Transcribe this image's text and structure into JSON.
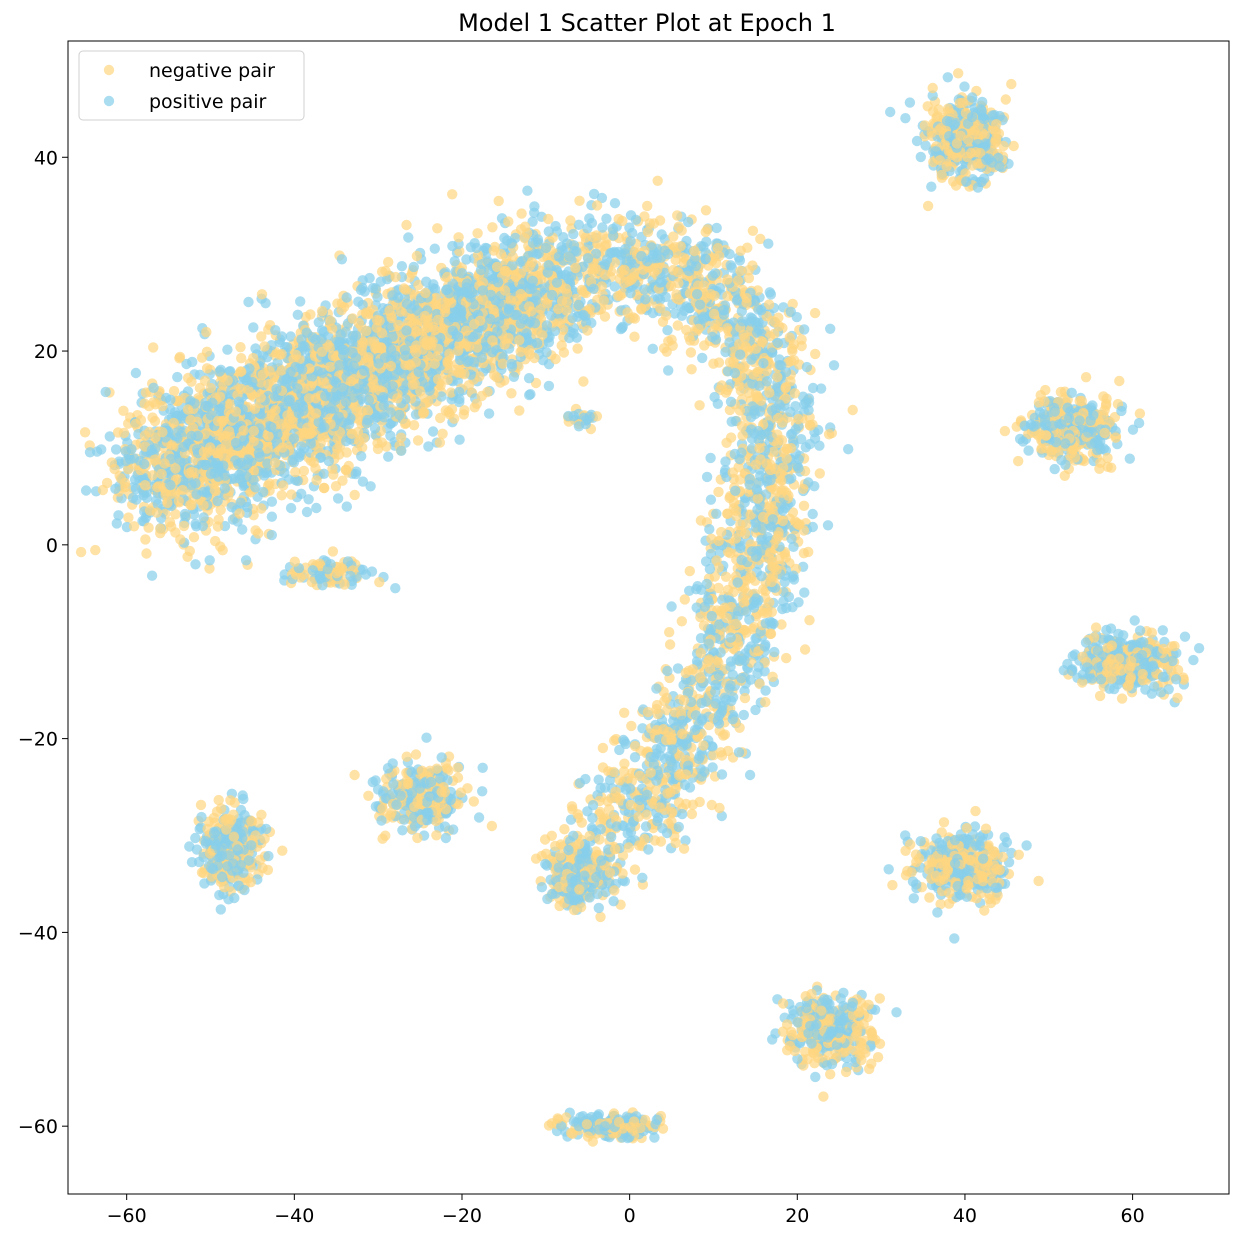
{
  "chart_data": {
    "type": "scatter",
    "title": "Model 1 Scatter Plot at Epoch 1",
    "xlabel": "",
    "ylabel": "",
    "xlim": [
      -67,
      71.5
    ],
    "ylim": [
      -67,
      52
    ],
    "x_ticks": [
      -60,
      -40,
      -20,
      0,
      20,
      40,
      60
    ],
    "y_ticks": [
      -60,
      -40,
      -20,
      0,
      20,
      40
    ],
    "x_tick_labels": [
      "−60",
      "−40",
      "−20",
      "0",
      "20",
      "40",
      "60"
    ],
    "y_tick_labels": [
      "−60",
      "−40",
      "−20",
      "0",
      "20",
      "40"
    ],
    "grid": false,
    "legend_position": "upper-left",
    "marker_alpha": 0.7,
    "series": [
      {
        "name": "negative pair",
        "color": "#FFD580"
      },
      {
        "name": "positive pair",
        "color": "#87CEEB"
      }
    ],
    "clusters": [
      {
        "center": [
          40,
          41.5
        ],
        "spread": [
          3.6,
          3.5
        ],
        "count": 420
      },
      {
        "center": [
          52.5,
          12
        ],
        "spread": [
          4.3,
          2.7
        ],
        "count": 380
      },
      {
        "center": [
          59.5,
          -12
        ],
        "spread": [
          4.4,
          2.4
        ],
        "count": 420
      },
      {
        "center": [
          39.5,
          -33
        ],
        "spread": [
          4.5,
          3.0
        ],
        "count": 380
      },
      {
        "center": [
          24,
          -50
        ],
        "spread": [
          3.8,
          2.8
        ],
        "count": 380
      },
      {
        "center": [
          -2,
          -60
        ],
        "spread": [
          4.8,
          1.0
        ],
        "count": 180
      },
      {
        "center": [
          -47.5,
          -31.5
        ],
        "spread": [
          3.2,
          3.2
        ],
        "count": 340
      },
      {
        "center": [
          -25,
          -26
        ],
        "spread": [
          4.1,
          2.6
        ],
        "count": 300
      },
      {
        "center": [
          -6,
          -34
        ],
        "spread": [
          3.1,
          2.7
        ],
        "count": 320
      },
      {
        "center": [
          -36,
          -3
        ],
        "spread": [
          3.8,
          1.3
        ],
        "count": 90
      },
      {
        "center": [
          -5.5,
          13
        ],
        "spread": [
          1.3,
          0.6
        ],
        "count": 25
      }
    ],
    "arc_path": [
      [
        -60,
        7
      ],
      [
        -50,
        10
      ],
      [
        -42,
        13
      ],
      [
        -34,
        17
      ],
      [
        -26,
        21
      ],
      [
        -18,
        24
      ],
      [
        -10,
        27
      ],
      [
        -2,
        29
      ],
      [
        6,
        28
      ],
      [
        13,
        24
      ],
      [
        17,
        16
      ],
      [
        17,
        8
      ],
      [
        15,
        -2
      ],
      [
        12,
        -12
      ],
      [
        8,
        -18
      ],
      [
        4,
        -23
      ],
      [
        1,
        -27
      ],
      [
        -3,
        -30
      ]
    ],
    "arc_spread": 4.0,
    "arc_count": 3600,
    "blob_count": 2600
  }
}
